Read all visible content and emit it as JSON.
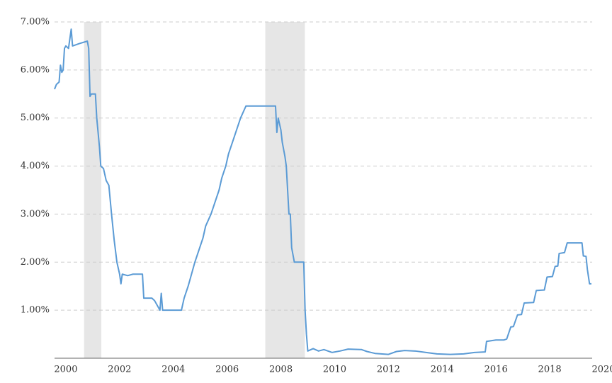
{
  "chart_data": {
    "type": "line",
    "color": "#5b9bd5",
    "recession_color": "#e6e6e6",
    "grid": true,
    "xlim": [
      1999.58,
      2020
    ],
    "ylim": [
      0,
      7
    ],
    "xticks": [
      2000,
      2002,
      2004,
      2006,
      2008,
      2010,
      2012,
      2014,
      2016,
      2018,
      2020
    ],
    "yticks": [
      {
        "value": 1,
        "label": "1.00%"
      },
      {
        "value": 2,
        "label": "2.00%"
      },
      {
        "value": 3,
        "label": "3.00%"
      },
      {
        "value": 4,
        "label": "4.00%"
      },
      {
        "value": 5,
        "label": "5.00%"
      },
      {
        "value": 6,
        "label": "6.00%"
      },
      {
        "value": 7,
        "label": "7.00%"
      }
    ],
    "recessions": [
      [
        2000.68,
        2001.32
      ],
      [
        2007.42,
        2008.89
      ]
    ],
    "x": [
      1999.58,
      1999.65,
      1999.75,
      1999.8,
      1999.85,
      1999.9,
      1999.95,
      2000.0,
      2000.1,
      2000.2,
      2000.25,
      2000.5,
      2000.8,
      2000.85,
      2000.9,
      2000.95,
      2001.1,
      2001.15,
      2001.25,
      2001.3,
      2001.4,
      2001.5,
      2001.6,
      2001.7,
      2001.8,
      2001.9,
      2002.0,
      2002.05,
      2002.1,
      2002.3,
      2002.5,
      2002.7,
      2002.85,
      2002.9,
      2003.0,
      2003.2,
      2003.3,
      2003.5,
      2003.55,
      2003.6,
      2004.0,
      2004.3,
      2004.4,
      2004.55,
      2004.7,
      2004.8,
      2004.95,
      2005.1,
      2005.2,
      2005.4,
      2005.55,
      2005.7,
      2005.8,
      2005.95,
      2006.05,
      2006.2,
      2006.35,
      2006.5,
      2006.7,
      2007.0,
      2007.5,
      2007.8,
      2007.85,
      2007.9,
      2008.0,
      2008.05,
      2008.15,
      2008.2,
      2008.3,
      2008.35,
      2008.4,
      2008.5,
      2008.7,
      2008.85,
      2008.9,
      2008.95,
      2009.0,
      2009.2,
      2009.4,
      2009.6,
      2009.9,
      2010.2,
      2010.5,
      2011.0,
      2011.2,
      2011.5,
      2012.0,
      2012.3,
      2012.6,
      2013.0,
      2013.4,
      2013.8,
      2014.3,
      2014.8,
      2015.2,
      2015.6,
      2015.65,
      2016.0,
      2016.3,
      2016.4,
      2016.55,
      2016.65,
      2016.8,
      2016.95,
      2017.05,
      2017.4,
      2017.5,
      2017.8,
      2017.9,
      2018.1,
      2018.2,
      2018.3,
      2018.35,
      2018.55,
      2018.65,
      2019.2,
      2019.25,
      2019.35,
      2019.4,
      2019.48,
      2019.55
    ],
    "values": [
      5.6,
      5.7,
      5.75,
      6.1,
      5.95,
      6.0,
      6.45,
      6.5,
      6.45,
      6.85,
      6.5,
      6.55,
      6.6,
      6.45,
      5.45,
      5.5,
      5.5,
      5.0,
      4.4,
      4.0,
      3.95,
      3.7,
      3.6,
      3.0,
      2.45,
      2.0,
      1.75,
      1.55,
      1.75,
      1.72,
      1.75,
      1.75,
      1.75,
      1.25,
      1.25,
      1.25,
      1.2,
      1.0,
      1.35,
      1.0,
      1.0,
      1.0,
      1.25,
      1.5,
      1.8,
      2.0,
      2.25,
      2.5,
      2.75,
      3.0,
      3.25,
      3.5,
      3.75,
      4.0,
      4.25,
      4.5,
      4.75,
      5.0,
      5.25,
      5.25,
      5.25,
      5.25,
      4.7,
      5.0,
      4.75,
      4.5,
      4.2,
      4.0,
      3.0,
      3.0,
      2.3,
      2.0,
      2.0,
      2.0,
      1.0,
      0.5,
      0.15,
      0.2,
      0.15,
      0.18,
      0.12,
      0.15,
      0.19,
      0.18,
      0.14,
      0.1,
      0.08,
      0.14,
      0.16,
      0.15,
      0.12,
      0.09,
      0.08,
      0.09,
      0.12,
      0.13,
      0.35,
      0.38,
      0.38,
      0.4,
      0.65,
      0.66,
      0.9,
      0.91,
      1.15,
      1.16,
      1.41,
      1.42,
      1.69,
      1.7,
      1.91,
      1.92,
      2.18,
      2.2,
      2.4,
      2.4,
      2.13,
      2.12,
      1.85,
      1.55,
      1.55
    ]
  }
}
